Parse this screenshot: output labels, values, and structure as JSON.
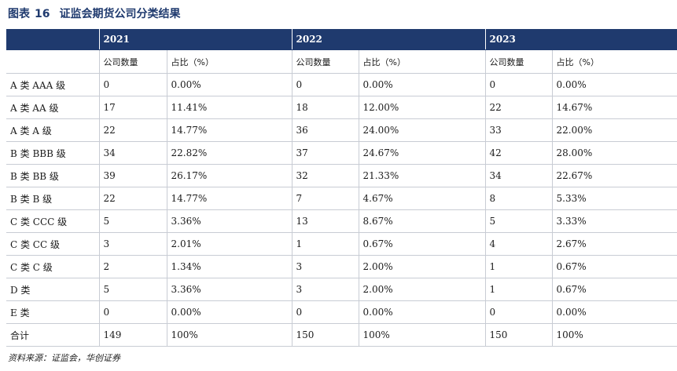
{
  "figure": {
    "label": "图表",
    "number": "16",
    "title": "证监会期货公司分类结果"
  },
  "table": {
    "years": [
      "2021",
      "2022",
      "2023"
    ],
    "subheaders": [
      "公司数量",
      "占比（%）"
    ],
    "rows": [
      {
        "label": "A 类 AAA 级",
        "cells": [
          "0",
          "0.00%",
          "0",
          "0.00%",
          "0",
          "0.00%"
        ]
      },
      {
        "label": "A 类 AA 级",
        "cells": [
          "17",
          "11.41%",
          "18",
          "12.00%",
          "22",
          "14.67%"
        ]
      },
      {
        "label": "A 类 A 级",
        "cells": [
          "22",
          "14.77%",
          "36",
          "24.00%",
          "33",
          "22.00%"
        ]
      },
      {
        "label": "B 类 BBB 级",
        "cells": [
          "34",
          "22.82%",
          "37",
          "24.67%",
          "42",
          "28.00%"
        ]
      },
      {
        "label": "B 类 BB 级",
        "cells": [
          "39",
          "26.17%",
          "32",
          "21.33%",
          "34",
          "22.67%"
        ]
      },
      {
        "label": "B 类 B 级",
        "cells": [
          "22",
          "14.77%",
          "7",
          "4.67%",
          "8",
          "5.33%"
        ]
      },
      {
        "label": "C 类 CCC 级",
        "cells": [
          "5",
          "3.36%",
          "13",
          "8.67%",
          "5",
          "3.33%"
        ]
      },
      {
        "label": "C 类 CC 级",
        "cells": [
          "3",
          "2.01%",
          "1",
          "0.67%",
          "4",
          "2.67%"
        ]
      },
      {
        "label": "C 类 C 级",
        "cells": [
          "2",
          "1.34%",
          "3",
          "2.00%",
          "1",
          "0.67%"
        ]
      },
      {
        "label": "D 类",
        "cells": [
          "5",
          "3.36%",
          "3",
          "2.00%",
          "1",
          "0.67%"
        ]
      },
      {
        "label": "E 类",
        "cells": [
          "0",
          "0.00%",
          "0",
          "0.00%",
          "0",
          "0.00%"
        ]
      },
      {
        "label": "合计",
        "cells": [
          "149",
          "100%",
          "150",
          "100%",
          "150",
          "100%"
        ]
      }
    ]
  },
  "source": "资料来源：证监会，华创证券",
  "colors": {
    "header_bg": "#1f3a6e",
    "header_text": "#ffffff",
    "grid": "#c8ccd4"
  }
}
